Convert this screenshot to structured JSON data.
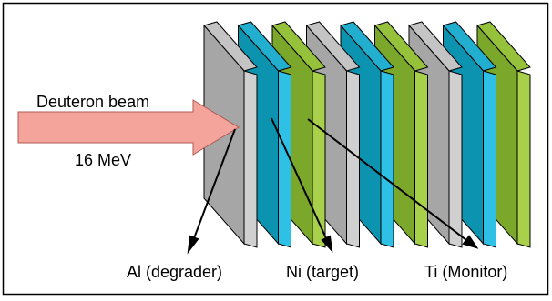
{
  "beam": {
    "label": "Deuteron beam",
    "energy": "16 MeV",
    "arrow_color": "#f4a49b"
  },
  "labels": {
    "degrader": "Al (degrader)",
    "target": "Ni (target)",
    "monitor": "Ti (Monitor)"
  },
  "foil_stack": [
    {
      "material": "Al",
      "role": "degrader"
    },
    {
      "material": "Ni",
      "role": "target"
    },
    {
      "material": "Ti",
      "role": "monitor"
    },
    {
      "material": "Al",
      "role": "degrader"
    },
    {
      "material": "Ni",
      "role": "target"
    },
    {
      "material": "Ti",
      "role": "monitor"
    },
    {
      "material": "Al",
      "role": "degrader"
    },
    {
      "material": "Ni",
      "role": "target"
    },
    {
      "material": "Ti",
      "role": "monitor"
    }
  ],
  "colors": {
    "Al": {
      "front": "#a6a6a6",
      "side": "#d0d0d0",
      "top": "#c4c4c4"
    },
    "Ni": {
      "front": "#0b93b0",
      "side": "#2fc0e6",
      "top": "#22aecf"
    },
    "Ti": {
      "front": "#7ba82a",
      "side": "#a8d04a",
      "top": "#95c23a"
    }
  }
}
